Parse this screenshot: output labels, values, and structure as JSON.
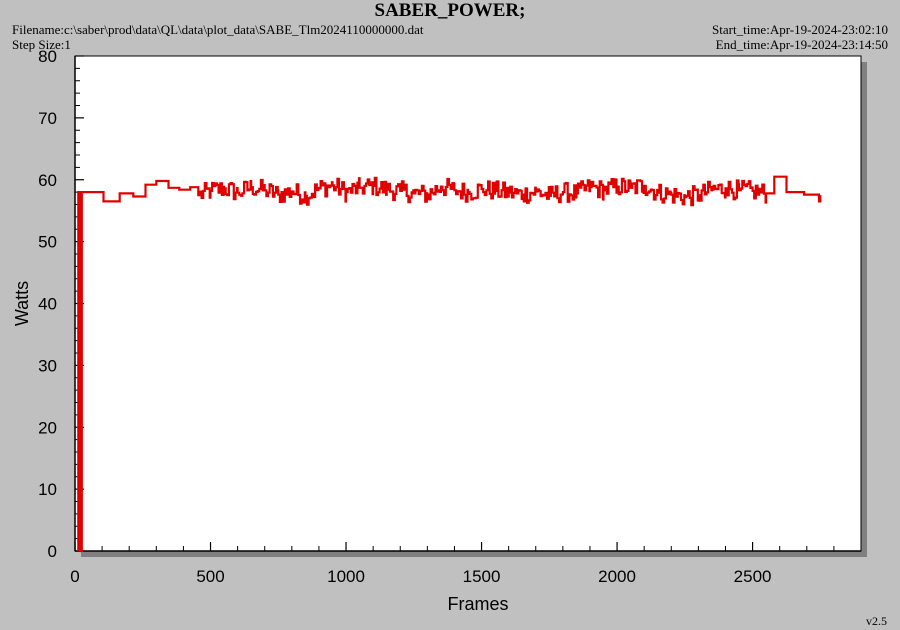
{
  "header": {
    "title": "SABER_POWER;",
    "filename": "Filename:c:\\saber\\prod\\data\\QL\\data\\plot_data\\SABE_Tlm2024110000000.dat",
    "step_size": "Step Size:1",
    "start_time": "Start_time:Apr-19-2024-23:02:10",
    "end_time": "End_time:Apr-19-2024-23:14:50",
    "version": "v2.5"
  },
  "colors": {
    "background": "#c0c0c0",
    "plot_area": "#ffffff",
    "series": "#e00000",
    "shadow": "#808080"
  },
  "chart_data": {
    "type": "line",
    "title": "SABER_POWER;",
    "xlabel": "Frames",
    "ylabel": "Watts",
    "xlim": [
      0,
      2900
    ],
    "ylim": [
      0,
      80
    ],
    "x_ticks": [
      0,
      500,
      1000,
      1500,
      2000,
      2500
    ],
    "y_ticks": [
      0,
      10,
      20,
      30,
      40,
      50,
      60,
      70,
      80
    ],
    "grid": false,
    "legend": "none",
    "series": [
      {
        "x": [
          12,
          12,
          15,
          20,
          25,
          100,
          105,
          160,
          165,
          210,
          215,
          255,
          260,
          295,
          300,
          340,
          345,
          380,
          385,
          420,
          425,
          450,
          455,
          500,
          550,
          600,
          650,
          700,
          750,
          800,
          850,
          900,
          950,
          1000,
          1050,
          1100,
          1150,
          1200,
          1250,
          1300,
          1350,
          1400,
          1450,
          1500,
          1550,
          1600,
          1650,
          1700,
          1750,
          1800,
          1850,
          1900,
          1950,
          2000,
          2050,
          2100,
          2150,
          2200,
          2250,
          2300,
          2350,
          2400,
          2450,
          2500,
          2550,
          2575,
          2580,
          2620,
          2625,
          2685,
          2690,
          2740,
          2745,
          2750
        ],
        "y": [
          0,
          58,
          58,
          0,
          58,
          58,
          56.5,
          56.5,
          57.8,
          57.8,
          57.3,
          57.3,
          59.2,
          59.2,
          59.8,
          59.8,
          58.7,
          58.7,
          58.4,
          58.4,
          58.8,
          58.8,
          57.5,
          58.2,
          58.6,
          57.9,
          58.8,
          58.3,
          57.6,
          58.1,
          57.4,
          58.6,
          59.1,
          58.0,
          58.7,
          59.0,
          58.4,
          58.2,
          57.8,
          57.6,
          58.9,
          58.3,
          58.0,
          58.5,
          58.2,
          57.9,
          57.6,
          58.1,
          57.4,
          58.0,
          57.8,
          58.8,
          58.3,
          58.9,
          58.7,
          59.0,
          57.9,
          57.6,
          57.2,
          57.5,
          58.4,
          58.6,
          58.3,
          58.2,
          57.8,
          57.8,
          60.5,
          60.5,
          58.0,
          58.0,
          57.6,
          57.6,
          56.5,
          57.5
        ]
      }
    ]
  }
}
